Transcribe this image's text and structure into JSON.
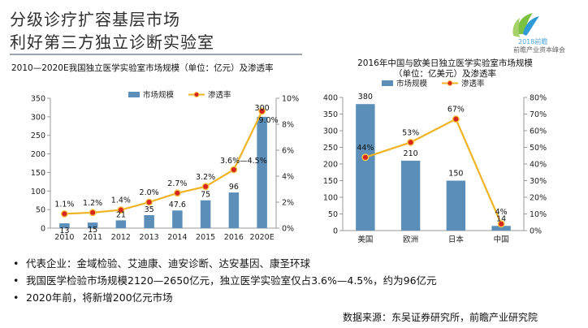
{
  "header": {
    "title_line1": "分级诊疗扩容基层市场",
    "title_line2": "利好第三方独立诊断实验室",
    "logo_year": "2018前瞻",
    "logo_text": "前瞻产业资本峰会"
  },
  "chart_data": [
    {
      "type": "bar",
      "title": "2010—2020E我国独立医学实验室市场规模（单位：亿元）及渗透率",
      "categories": [
        "2010",
        "2011",
        "2012",
        "2013",
        "2014",
        "2015",
        "2016",
        "2020E"
      ],
      "series": [
        {
          "name": "市场规模",
          "kind": "bar",
          "axis": "left",
          "color": "#5b8fb9",
          "values": [
            13,
            15,
            21,
            35,
            47.6,
            75,
            96,
            300
          ],
          "labels": [
            "13",
            "15",
            "21",
            "35",
            "47.6",
            "75",
            "96",
            "300"
          ]
        },
        {
          "name": "渗透率",
          "kind": "line",
          "axis": "right",
          "color": "#f0b323",
          "marker": "#d9261c",
          "values": [
            1.1,
            1.2,
            1.4,
            2.0,
            2.7,
            3.2,
            4.5,
            9.0
          ],
          "labels": [
            "1.1%",
            "1.2%",
            "1.4%",
            "2.0%",
            "2.7%",
            "3.2%",
            "3.6%—4.5%",
            "9.0%"
          ]
        }
      ],
      "ylim": [
        0,
        350
      ],
      "yticks": [
        "0",
        "50",
        "100",
        "150",
        "200",
        "250",
        "300",
        "350"
      ],
      "y2lim": [
        0,
        10
      ],
      "y2ticks": [
        "0%",
        "2%",
        "4%",
        "6%",
        "8%",
        "10%"
      ],
      "legend": "top"
    },
    {
      "type": "bar",
      "title": "2016年中国与欧美日独立医学实验室市场规模（单位：亿美元）及渗透率",
      "title_line1": "2016年中国与欧美日独立医学实验室市场规模",
      "title_line2": "（单位：亿美元）及渗透率",
      "categories": [
        "美国",
        "欧洲",
        "日本",
        "中国"
      ],
      "series": [
        {
          "name": "市场规模",
          "kind": "bar",
          "axis": "left",
          "color": "#5b8fb9",
          "values": [
            380,
            210,
            150,
            14
          ],
          "labels": [
            "380",
            "210",
            "150",
            "14"
          ]
        },
        {
          "name": "渗透率",
          "kind": "line",
          "axis": "right",
          "color": "#f0b323",
          "marker": "#d9261c",
          "values": [
            44,
            53,
            67,
            4
          ],
          "labels": [
            "44%",
            "53%",
            "67%",
            "4%"
          ]
        }
      ],
      "ylim": [
        0,
        400
      ],
      "yticks": [
        "0",
        "50",
        "100",
        "150",
        "200",
        "250",
        "300",
        "350",
        "400"
      ],
      "y2lim": [
        0,
        80
      ],
      "y2ticks": [
        "0%",
        "10%",
        "20%",
        "30%",
        "40%",
        "50%",
        "60%",
        "70%",
        "80%"
      ],
      "legend": "top"
    }
  ],
  "bullets": [
    "代表企业：金域检验、艾迪康、迪安诊断、达安基因、康圣环球",
    "我国医学检验市场规模2120—2650亿元，独立医学实验室仅占3.6%—4.5%，约为96亿元",
    "2020年前，将新增200亿元市场"
  ],
  "bullet_symbol": "•",
  "source": "数据来源：东吴证券研究所，前瞻产业研究院"
}
